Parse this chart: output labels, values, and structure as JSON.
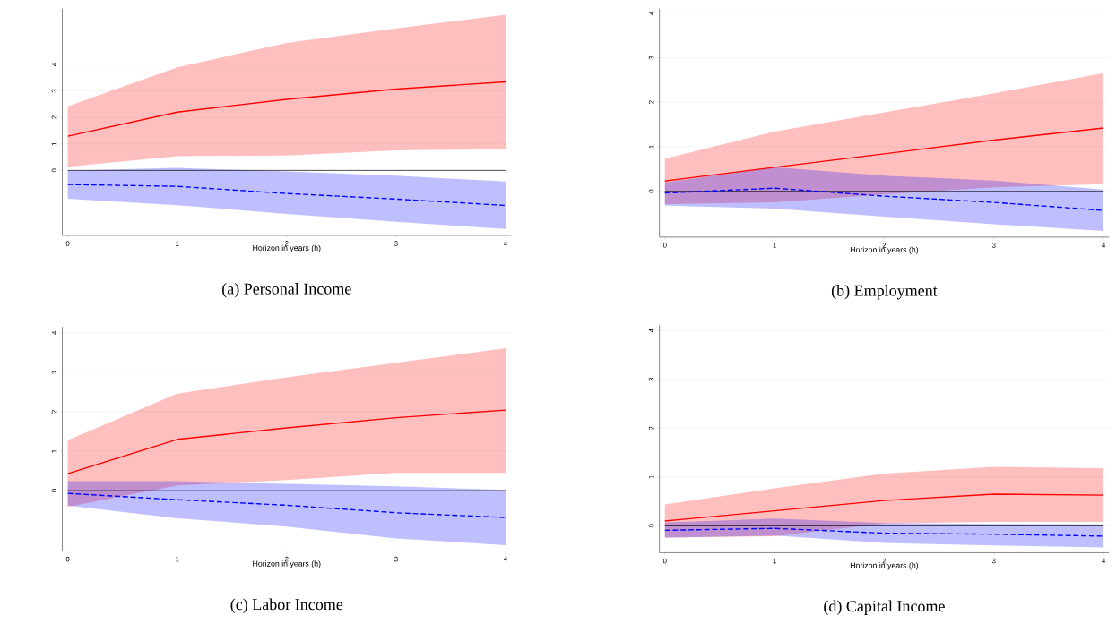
{
  "chart_data": [
    {
      "type": "line",
      "title": "(a) Personal Income",
      "xlabel": "Horizon in years (h)",
      "x": [
        0,
        1,
        2,
        3,
        4
      ],
      "xlim": [
        -0.05,
        4.05
      ],
      "xticks": [
        0,
        1,
        2,
        3,
        4
      ],
      "ylim": [
        -2.45,
        6.1
      ],
      "yticks": [
        0,
        1,
        2,
        3,
        4
      ],
      "grid": "y",
      "ref_lines": [
        {
          "axis": "y",
          "value": 0,
          "color": "#000000"
        }
      ],
      "series": [
        {
          "color": "#ff0000",
          "line_style": "solid",
          "values": [
            1.29,
            2.2,
            2.68,
            3.07,
            3.34
          ],
          "lower": [
            0.14,
            0.54,
            0.56,
            0.76,
            0.8
          ],
          "upper": [
            2.42,
            3.89,
            4.81,
            5.36,
            5.87
          ]
        },
        {
          "color": "#0000ff",
          "line_style": "dashed",
          "values": [
            -0.53,
            -0.6,
            -0.87,
            -1.08,
            -1.32
          ],
          "lower": [
            -1.07,
            -1.31,
            -1.64,
            -1.94,
            -2.21
          ],
          "upper": [
            0.0,
            0.1,
            -0.04,
            -0.2,
            -0.42
          ]
        }
      ]
    },
    {
      "type": "line",
      "title": "(b) Employment",
      "xlabel": "Horizon in years (h)",
      "x": [
        0,
        1,
        2,
        3,
        4
      ],
      "xlim": [
        -0.05,
        4.05
      ],
      "xticks": [
        0,
        1,
        2,
        3,
        4
      ],
      "ylim": [
        -1.03,
        4.1
      ],
      "yticks": [
        0,
        1,
        2,
        3,
        4
      ],
      "grid": "y",
      "ref_lines": [
        {
          "axis": "y",
          "value": 0,
          "color": "#000000"
        }
      ],
      "series": [
        {
          "color": "#ff0000",
          "line_style": "solid",
          "values": [
            0.23,
            0.54,
            0.84,
            1.15,
            1.42
          ],
          "lower": [
            -0.29,
            -0.25,
            -0.07,
            0.09,
            0.16
          ],
          "upper": [
            0.73,
            1.34,
            1.77,
            2.2,
            2.65
          ]
        },
        {
          "color": "#0000ff",
          "line_style": "dashed",
          "values": [
            -0.04,
            0.07,
            -0.11,
            -0.25,
            -0.43
          ],
          "lower": [
            -0.32,
            -0.39,
            -0.57,
            -0.74,
            -0.89
          ],
          "upper": [
            0.2,
            0.54,
            0.35,
            0.24,
            0.04
          ]
        }
      ]
    },
    {
      "type": "line",
      "title": "(c) Labor Income",
      "xlabel": "Horizon in years (h)",
      "x": [
        0,
        1,
        2,
        3,
        4
      ],
      "xlim": [
        -0.05,
        4.05
      ],
      "xticks": [
        0,
        1,
        2,
        3,
        4
      ],
      "ylim": [
        -1.53,
        4.15
      ],
      "yticks": [
        0,
        1,
        2,
        3,
        4
      ],
      "grid": "y",
      "ref_lines": [
        {
          "axis": "y",
          "value": 0,
          "color": "#000000"
        }
      ],
      "series": [
        {
          "color": "#ff0000",
          "line_style": "solid",
          "values": [
            0.43,
            1.3,
            1.59,
            1.85,
            2.04
          ],
          "lower": [
            -0.41,
            0.13,
            0.27,
            0.45,
            0.45
          ],
          "upper": [
            1.28,
            2.46,
            2.87,
            3.24,
            3.61
          ]
        },
        {
          "color": "#0000ff",
          "line_style": "dashed",
          "values": [
            -0.07,
            -0.23,
            -0.37,
            -0.56,
            -0.68
          ],
          "lower": [
            -0.38,
            -0.7,
            -0.91,
            -1.21,
            -1.38
          ],
          "upper": [
            0.24,
            0.24,
            0.17,
            0.11,
            0.02
          ]
        }
      ]
    },
    {
      "type": "line",
      "title": "(d) Capital Income",
      "xlabel": "Horizon in years (h)",
      "x": [
        0,
        1,
        2,
        3,
        4
      ],
      "xlim": [
        -0.05,
        4.05
      ],
      "xticks": [
        0,
        1,
        2,
        3,
        4
      ],
      "ylim": [
        -0.55,
        4.11
      ],
      "yticks": [
        0,
        1,
        2,
        3,
        4
      ],
      "grid": "y",
      "ref_lines": [
        {
          "axis": "y",
          "value": 0,
          "color": "#000000"
        }
      ],
      "series": [
        {
          "color": "#ff0000",
          "line_style": "solid",
          "values": [
            0.1,
            0.31,
            0.52,
            0.65,
            0.63
          ],
          "lower": [
            -0.24,
            -0.21,
            0.05,
            0.08,
            0.08
          ],
          "upper": [
            0.44,
            0.77,
            1.07,
            1.21,
            1.18
          ]
        },
        {
          "color": "#0000ff",
          "line_style": "dashed",
          "values": [
            -0.09,
            -0.05,
            -0.15,
            -0.17,
            -0.21
          ],
          "lower": [
            -0.24,
            -0.2,
            -0.35,
            -0.4,
            -0.44
          ],
          "upper": [
            0.07,
            0.15,
            0.06,
            0.04,
            0.03
          ]
        }
      ]
    }
  ]
}
